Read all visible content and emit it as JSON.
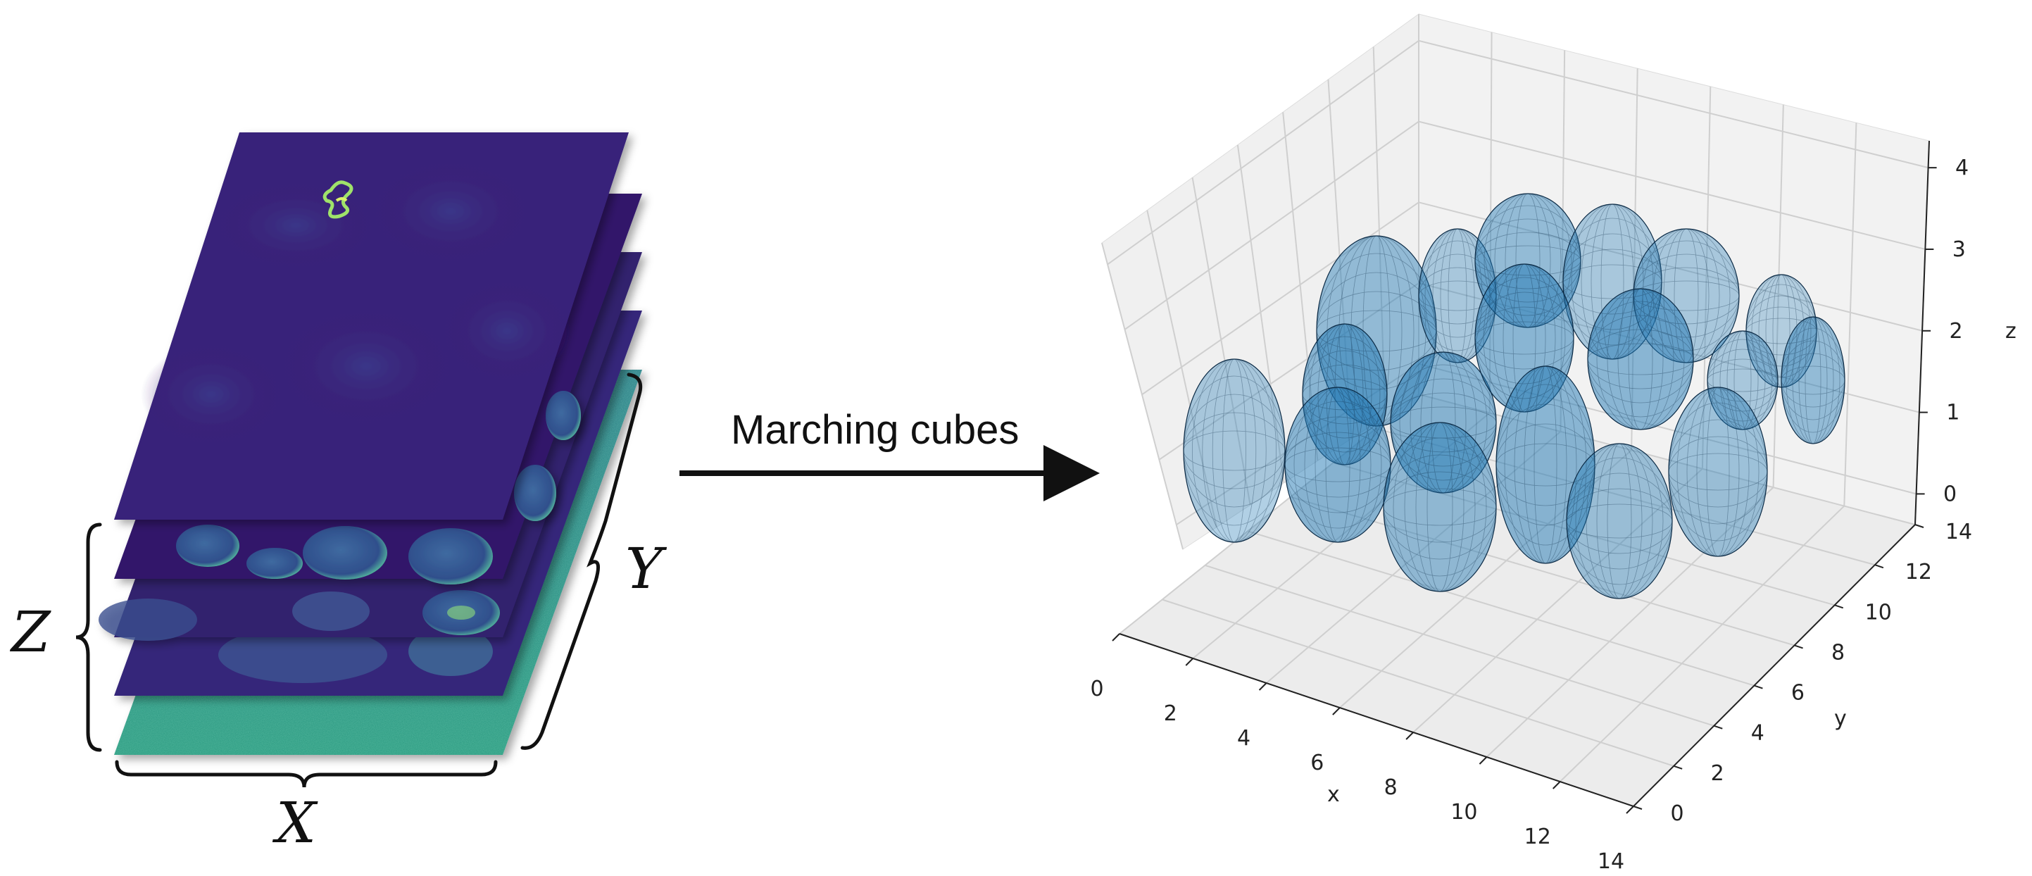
{
  "stack": {
    "labels": {
      "z": "Z",
      "y": "Y",
      "x": "X"
    }
  },
  "arrow": {
    "label": "Marching cubes"
  },
  "plot3d": {
    "x_label": "x",
    "y_label": "y",
    "z_label": "z",
    "x_ticks": [
      "0",
      "2",
      "4",
      "6",
      "8",
      "10",
      "12",
      "14"
    ],
    "y_ticks": [
      "0",
      "2",
      "4",
      "6",
      "8",
      "10",
      "12",
      "14"
    ],
    "z_ticks": [
      "0",
      "1",
      "2",
      "3",
      "4"
    ],
    "mesh_color": "#1f77b4",
    "pane_color": "#f0f0f0",
    "grid_color": "#cfcfcf"
  }
}
